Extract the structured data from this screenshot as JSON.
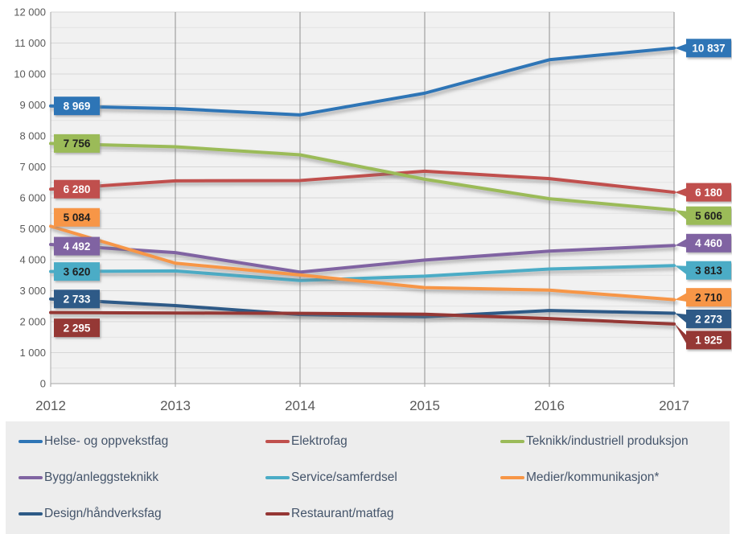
{
  "chart_data": {
    "type": "line",
    "title": "",
    "x": [
      2012,
      2013,
      2014,
      2015,
      2016,
      2017
    ],
    "x_labels": [
      "2012",
      "2013",
      "2014",
      "2015",
      "2016",
      "2017"
    ],
    "ylim": [
      0,
      12000
    ],
    "y_tick_step": 1000,
    "y_minor_grid_step": 500,
    "y_tick_labels": [
      "0",
      "1 000",
      "2 000",
      "3 000",
      "4 000",
      "5 000",
      "6 000",
      "7 000",
      "8 000",
      "9 000",
      "10 000",
      "11 000",
      "12 000"
    ],
    "grid": true,
    "legend_position": "bottom",
    "axis_label_color": "#595959",
    "series": [
      {
        "name": "Helse- og oppvekstfag",
        "color": "#2E75B6",
        "label_text_color": "#FFFFFF",
        "values": [
          8969,
          8880,
          8680,
          9380,
          10460,
          10837
        ],
        "start_label": {
          "text": "8 969",
          "dy": 0
        },
        "end_label": {
          "text": "10 837",
          "dy": 0
        }
      },
      {
        "name": "Elektrofag",
        "color": "#C0504D",
        "label_text_color": "#FFFFFF",
        "values": [
          6280,
          6550,
          6560,
          6860,
          6620,
          6180
        ],
        "start_label": {
          "text": "6 280",
          "dy": 0
        },
        "end_label": {
          "text": "6 180",
          "dy": 0
        }
      },
      {
        "name": "Teknikk/industriell produksjon",
        "color": "#9BBB59",
        "label_text_color": "#1F1F1F",
        "values": [
          7756,
          7650,
          7390,
          6600,
          5970,
          5606
        ],
        "start_label": {
          "text": "7 756",
          "dy": 0
        },
        "end_label": {
          "text": "5 606",
          "dy": 7
        }
      },
      {
        "name": "Bygg/anleggsteknikk",
        "color": "#8064A2",
        "label_text_color": "#FFFFFF",
        "values": [
          4492,
          4230,
          3600,
          3990,
          4280,
          4460
        ],
        "start_label": {
          "text": "4 492",
          "dy": 2
        },
        "end_label": {
          "text": "4 460",
          "dy": -3
        }
      },
      {
        "name": "Service/samferdsel",
        "color": "#4BACC6",
        "label_text_color": "#1F1F1F",
        "values": [
          3620,
          3640,
          3330,
          3470,
          3700,
          3813
        ],
        "start_label": {
          "text": "3 620",
          "dy": 0
        },
        "end_label": {
          "text": "3 813",
          "dy": 6
        }
      },
      {
        "name": "Medier/kommunikasjon*",
        "color": "#F79646",
        "label_text_color": "#1F1F1F",
        "values": [
          5084,
          3890,
          3510,
          3100,
          3020,
          2710
        ],
        "start_label": {
          "text": "5 084",
          "dy": -11
        },
        "end_label": {
          "text": "2 710",
          "dy": -3
        }
      },
      {
        "name": "Design/håndverksfag",
        "color": "#2D5A87",
        "label_text_color": "#FFFFFF",
        "values": [
          2733,
          2520,
          2230,
          2160,
          2360,
          2273
        ],
        "start_label": {
          "text": "2 733",
          "dy": 0
        },
        "end_label": {
          "text": "2 273",
          "dy": 7
        }
      },
      {
        "name": "Restaurant/matfag",
        "color": "#953735",
        "label_text_color": "#FFFFFF",
        "values": [
          2295,
          2280,
          2270,
          2240,
          2100,
          1925
        ],
        "start_label": {
          "text": "2 295",
          "dy": 19
        },
        "end_label": {
          "text": "1 925",
          "dy": 20
        }
      }
    ]
  }
}
